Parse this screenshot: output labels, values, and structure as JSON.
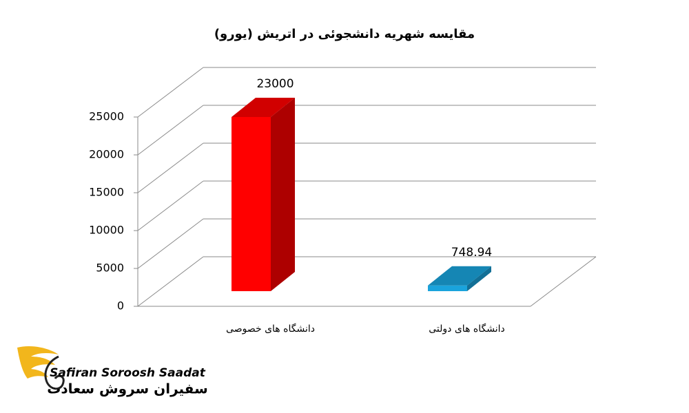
{
  "chart_data": {
    "type": "bar3d",
    "title": "مقایسه شهریه دانشجوئی در اتریش (یورو)",
    "categories": [
      "دانشگاه های خصوصی",
      "دانشگاه های دولتی"
    ],
    "values": [
      23000,
      748.94
    ],
    "colors": [
      "#ff0000",
      "#1aa3dc"
    ],
    "ylim": [
      0,
      25000
    ],
    "yticks": [
      0,
      5000,
      10000,
      15000,
      20000,
      25000
    ],
    "grid": true
  },
  "logo": {
    "name_en": "Safiran Soroosh Saadat",
    "name_fa": "سفیران سروش سعادت"
  }
}
